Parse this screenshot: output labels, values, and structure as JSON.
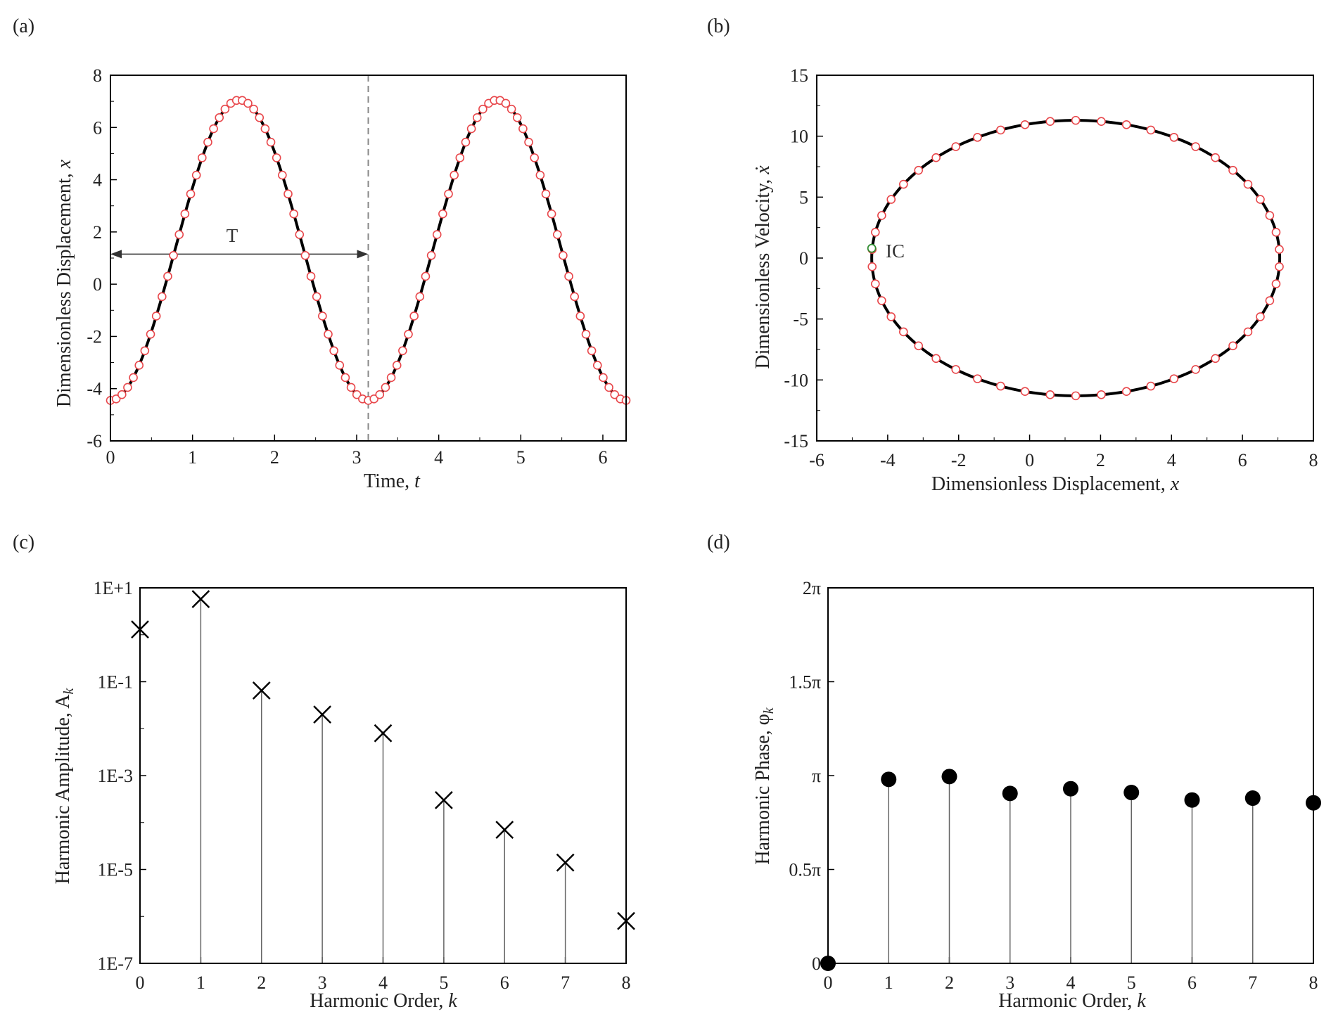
{
  "chart_data": [
    {
      "panel_label": "(a)",
      "type": "line",
      "xlabel": "Time, ",
      "xlabel_var": "t",
      "ylabel": "Dimensionless Displacement, ",
      "ylabel_var": "x",
      "xlim": [
        0,
        6.2832
      ],
      "ylim": [
        -6,
        8
      ],
      "xticks": [
        0,
        1,
        2,
        3,
        4,
        5,
        6
      ],
      "yticks": [
        -6,
        -4,
        -2,
        0,
        2,
        4,
        6,
        8
      ],
      "grid": false,
      "period_label": "T",
      "period": 3.1416,
      "period_arrow_y": 1.15,
      "model": {
        "offset": 1.3,
        "amplitude": 5.75,
        "omega": 2,
        "phase_shift": 1.5708
      },
      "series": [
        {
          "style": "solid-black-line",
          "samples": 300
        },
        {
          "style": "open-red-circles",
          "samples": 91
        }
      ],
      "colors": {
        "line": "#000000",
        "markers": "#e8474b"
      }
    },
    {
      "panel_label": "(b)",
      "type": "line",
      "xlabel": "Dimensionless Displacement, ",
      "xlabel_var": "x",
      "ylabel": "Dimensionless Velocity, ",
      "ylabel_var": "ẋ",
      "xlim": [
        -6,
        8
      ],
      "ylim": [
        -15,
        15
      ],
      "xticks": [
        -6,
        -4,
        -2,
        0,
        2,
        4,
        6,
        8
      ],
      "yticks": [
        -15,
        -10,
        -5,
        0,
        5,
        10,
        15
      ],
      "grid": false,
      "model": {
        "x_center": 1.3,
        "x_amplitude": 5.75,
        "v_amplitude": 11.3
      },
      "series": [
        {
          "style": "solid-black-line",
          "samples": 360
        },
        {
          "style": "open-red-circles",
          "samples": 50
        }
      ],
      "annotation": {
        "text": "IC",
        "x": -4.45,
        "y": 0.8,
        "marker_color": "#2e8b2e"
      },
      "colors": {
        "line": "#000000",
        "markers": "#e8474b"
      }
    },
    {
      "panel_label": "(c)",
      "type": "scatter",
      "scale": "log-y",
      "xlabel": "Harmonic Order, ",
      "xlabel_var": "k",
      "ylabel": "Harmonic Amplitude, A",
      "ylabel_sub": "k",
      "xlim": [
        0,
        8
      ],
      "ylim": [
        1e-07,
        10
      ],
      "xticks": [
        0,
        1,
        2,
        3,
        4,
        5,
        6,
        7,
        8
      ],
      "yticks": [
        1e-07,
        1e-05,
        0.001,
        0.1,
        10
      ],
      "ytick_labels": [
        "1E-7",
        "1E-5",
        "1E-3",
        "1E-1",
        "1E+1"
      ],
      "minor_yticks": [
        1e-06,
        0.0001,
        0.01,
        1
      ],
      "grid": false,
      "marker": "cross",
      "stems": true,
      "x": [
        0,
        1,
        2,
        3,
        4,
        5,
        6,
        7,
        8
      ],
      "y": [
        1.3,
        5.75,
        0.065,
        0.02,
        0.008,
        0.0003,
        7e-05,
        1.4e-05,
        8e-07
      ]
    },
    {
      "panel_label": "(d)",
      "type": "scatter",
      "xlabel": "Harmonic Order, ",
      "xlabel_var": "k",
      "ylabel": "Harmonic Phase, φ",
      "ylabel_sub": "k",
      "xlim": [
        0,
        8
      ],
      "ylim_over_pi": [
        0,
        2
      ],
      "xticks": [
        0,
        1,
        2,
        3,
        4,
        5,
        6,
        7,
        8
      ],
      "yticks_over_pi": [
        0,
        0.5,
        1,
        1.5,
        2
      ],
      "ytick_labels": [
        "0",
        "0.5π",
        "π",
        "1.5π",
        "2π"
      ],
      "grid": false,
      "marker": "filled-circle",
      "stems": true,
      "x": [
        0,
        1,
        2,
        3,
        4,
        5,
        6,
        7,
        8
      ],
      "y_over_pi": [
        0,
        0.98,
        0.995,
        0.905,
        0.93,
        0.91,
        0.87,
        0.88,
        0.855
      ]
    }
  ]
}
